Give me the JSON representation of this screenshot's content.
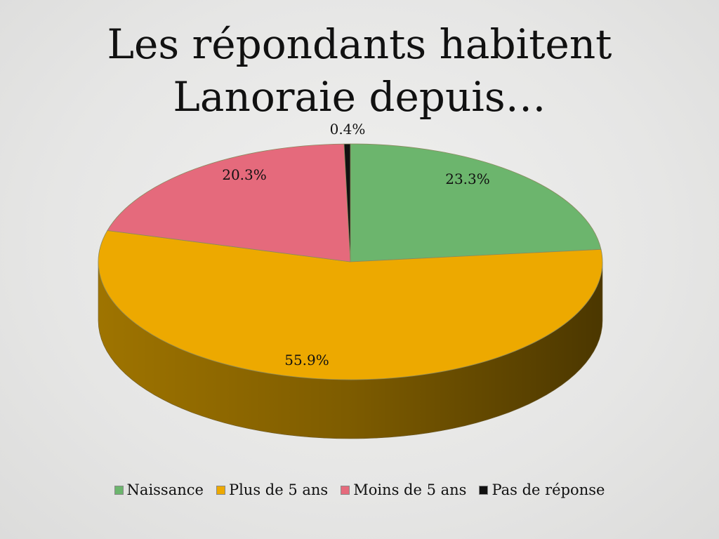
{
  "chart_data": {
    "type": "pie",
    "title_lines": [
      "Les répondants habitent",
      "Lanoraie depuis…"
    ],
    "categories": [
      "Naissance",
      "Plus de 5 ans",
      "Moins de 5 ans",
      "Pas de réponse"
    ],
    "values": [
      23.3,
      55.9,
      20.3,
      0.4
    ],
    "labels": [
      "23.3%",
      "55.9%",
      "20.3%",
      "0.4%"
    ],
    "colors": [
      "#6cb56d",
      "#eda900",
      "#e56a7c",
      "#111111"
    ],
    "side_colors": [
      "#3f7a40",
      "#a77a00",
      "#a8485a",
      "#000000"
    ],
    "legend_position": "bottom",
    "style": "3d"
  }
}
